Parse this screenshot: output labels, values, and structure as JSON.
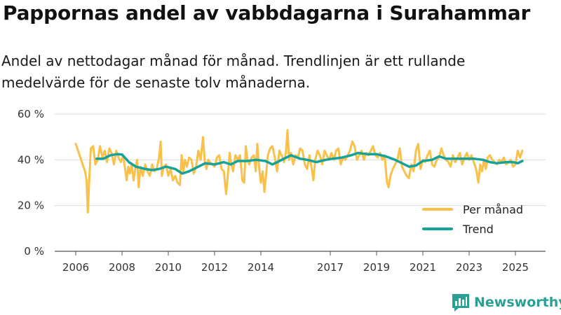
{
  "chart_data": {
    "type": "line",
    "title": "Pappornas andel av vabbdagarna i Surahammar",
    "subtitle": "Andel av nettodagar månad för månad. Trendlinjen är ett rullande medelvärde för de senaste tolv månaderna.",
    "ylim": [
      0,
      60
    ],
    "y_ticks": [
      {
        "value": 0,
        "label": "0 %"
      },
      {
        "value": 20,
        "label": "20 %"
      },
      {
        "value": 40,
        "label": "40 %"
      },
      {
        "value": 60,
        "label": "60 %"
      }
    ],
    "x_ticks": [
      {
        "value": 2006,
        "label": "2006"
      },
      {
        "value": 2008,
        "label": "2008"
      },
      {
        "value": 2010,
        "label": "2010"
      },
      {
        "value": 2012,
        "label": "2012"
      },
      {
        "value": 2014,
        "label": "2014"
      },
      {
        "value": 2017,
        "label": "2017"
      },
      {
        "value": 2019,
        "label": "2019"
      },
      {
        "value": 2021,
        "label": "2021"
      },
      {
        "value": 2023,
        "label": "2023"
      },
      {
        "value": 2025,
        "label": "2025"
      }
    ],
    "grid": true,
    "legend_position": "bottom-right",
    "series": [
      {
        "name": "Per månad",
        "color": "#f9c04a",
        "points": [
          [
            2006.0,
            47
          ],
          [
            2006.1,
            44
          ],
          [
            2006.2,
            41
          ],
          [
            2006.3,
            38
          ],
          [
            2006.4,
            35
          ],
          [
            2006.47,
            31
          ],
          [
            2006.52,
            17
          ],
          [
            2006.58,
            30
          ],
          [
            2006.65,
            45
          ],
          [
            2006.75,
            46
          ],
          [
            2006.85,
            38
          ],
          [
            2006.95,
            40
          ],
          [
            2007.05,
            46
          ],
          [
            2007.15,
            41
          ],
          [
            2007.25,
            44
          ],
          [
            2007.35,
            39
          ],
          [
            2007.45,
            45
          ],
          [
            2007.55,
            43
          ],
          [
            2007.65,
            38
          ],
          [
            2007.75,
            44
          ],
          [
            2007.85,
            41
          ],
          [
            2007.95,
            39
          ],
          [
            2008.05,
            42
          ],
          [
            2008.12,
            37
          ],
          [
            2008.2,
            31
          ],
          [
            2008.27,
            37
          ],
          [
            2008.35,
            34
          ],
          [
            2008.42,
            38
          ],
          [
            2008.5,
            31
          ],
          [
            2008.57,
            36
          ],
          [
            2008.65,
            40
          ],
          [
            2008.72,
            28
          ],
          [
            2008.8,
            37
          ],
          [
            2008.9,
            33
          ],
          [
            2009.0,
            38
          ],
          [
            2009.1,
            35
          ],
          [
            2009.2,
            33
          ],
          [
            2009.3,
            38
          ],
          [
            2009.4,
            35
          ],
          [
            2009.5,
            36
          ],
          [
            2009.6,
            41
          ],
          [
            2009.67,
            48
          ],
          [
            2009.72,
            33
          ],
          [
            2009.8,
            37
          ],
          [
            2009.9,
            38
          ],
          [
            2010.0,
            33
          ],
          [
            2010.1,
            36
          ],
          [
            2010.2,
            31
          ],
          [
            2010.3,
            33
          ],
          [
            2010.4,
            30
          ],
          [
            2010.5,
            29
          ],
          [
            2010.58,
            42
          ],
          [
            2010.65,
            35
          ],
          [
            2010.72,
            40
          ],
          [
            2010.8,
            37
          ],
          [
            2010.9,
            41
          ],
          [
            2011.0,
            40
          ],
          [
            2011.1,
            34
          ],
          [
            2011.2,
            37
          ],
          [
            2011.3,
            44
          ],
          [
            2011.4,
            40
          ],
          [
            2011.5,
            50
          ],
          [
            2011.58,
            39
          ],
          [
            2011.65,
            36
          ],
          [
            2011.72,
            40
          ],
          [
            2011.8,
            39
          ],
          [
            2011.9,
            38
          ],
          [
            2012.0,
            37
          ],
          [
            2012.1,
            41
          ],
          [
            2012.2,
            42
          ],
          [
            2012.3,
            36
          ],
          [
            2012.4,
            35
          ],
          [
            2012.5,
            25
          ],
          [
            2012.58,
            34
          ],
          [
            2012.65,
            43
          ],
          [
            2012.72,
            38
          ],
          [
            2012.8,
            35
          ],
          [
            2012.9,
            42
          ],
          [
            2013.0,
            40
          ],
          [
            2013.1,
            42
          ],
          [
            2013.2,
            31
          ],
          [
            2013.28,
            30
          ],
          [
            2013.35,
            46
          ],
          [
            2013.42,
            40
          ],
          [
            2013.5,
            38
          ],
          [
            2013.6,
            41
          ],
          [
            2013.7,
            42
          ],
          [
            2013.78,
            35
          ],
          [
            2013.85,
            47
          ],
          [
            2013.92,
            37
          ],
          [
            2014.0,
            30
          ],
          [
            2014.08,
            35
          ],
          [
            2014.15,
            26
          ],
          [
            2014.22,
            33
          ],
          [
            2014.3,
            42
          ],
          [
            2014.4,
            45
          ],
          [
            2014.5,
            46
          ],
          [
            2014.6,
            41
          ],
          [
            2014.7,
            35
          ],
          [
            2014.8,
            44
          ],
          [
            2014.9,
            42
          ],
          [
            2015.0,
            39
          ],
          [
            2015.08,
            43
          ],
          [
            2015.15,
            53
          ],
          [
            2015.22,
            40
          ],
          [
            2015.3,
            43
          ],
          [
            2015.4,
            38
          ],
          [
            2015.5,
            42
          ],
          [
            2015.6,
            41
          ],
          [
            2015.7,
            45
          ],
          [
            2015.8,
            44
          ],
          [
            2015.9,
            38
          ],
          [
            2016.0,
            36
          ],
          [
            2016.1,
            42
          ],
          [
            2016.2,
            36
          ],
          [
            2016.27,
            31
          ],
          [
            2016.35,
            40
          ],
          [
            2016.45,
            44
          ],
          [
            2016.55,
            42
          ],
          [
            2016.65,
            38
          ],
          [
            2016.75,
            44
          ],
          [
            2016.85,
            42
          ],
          [
            2016.95,
            40
          ],
          [
            2017.05,
            43
          ],
          [
            2017.15,
            40
          ],
          [
            2017.25,
            44
          ],
          [
            2017.35,
            45
          ],
          [
            2017.45,
            38
          ],
          [
            2017.55,
            41
          ],
          [
            2017.65,
            40
          ],
          [
            2017.75,
            42
          ],
          [
            2017.85,
            44
          ],
          [
            2017.95,
            48
          ],
          [
            2018.05,
            46
          ],
          [
            2018.15,
            40
          ],
          [
            2018.25,
            42
          ],
          [
            2018.35,
            44
          ],
          [
            2018.45,
            40
          ],
          [
            2018.55,
            43
          ],
          [
            2018.65,
            42
          ],
          [
            2018.75,
            44
          ],
          [
            2018.85,
            46
          ],
          [
            2018.95,
            42
          ],
          [
            2019.05,
            41
          ],
          [
            2019.15,
            43
          ],
          [
            2019.25,
            40
          ],
          [
            2019.35,
            42
          ],
          [
            2019.45,
            30
          ],
          [
            2019.52,
            28
          ],
          [
            2019.6,
            33
          ],
          [
            2019.7,
            36
          ],
          [
            2019.8,
            38
          ],
          [
            2019.9,
            40
          ],
          [
            2020.0,
            45
          ],
          [
            2020.1,
            37
          ],
          [
            2020.2,
            35
          ],
          [
            2020.3,
            33
          ],
          [
            2020.4,
            32
          ],
          [
            2020.5,
            38
          ],
          [
            2020.6,
            35
          ],
          [
            2020.7,
            44
          ],
          [
            2020.8,
            47
          ],
          [
            2020.9,
            36
          ],
          [
            2021.0,
            40
          ],
          [
            2021.1,
            39
          ],
          [
            2021.2,
            42
          ],
          [
            2021.3,
            44
          ],
          [
            2021.4,
            38
          ],
          [
            2021.5,
            37
          ],
          [
            2021.6,
            40
          ],
          [
            2021.7,
            41
          ],
          [
            2021.8,
            45
          ],
          [
            2021.9,
            42
          ],
          [
            2022.0,
            40
          ],
          [
            2022.1,
            39
          ],
          [
            2022.2,
            37
          ],
          [
            2022.3,
            42
          ],
          [
            2022.4,
            39
          ],
          [
            2022.5,
            41
          ],
          [
            2022.6,
            43
          ],
          [
            2022.7,
            38
          ],
          [
            2022.8,
            41
          ],
          [
            2022.9,
            43
          ],
          [
            2023.0,
            40
          ],
          [
            2023.1,
            42
          ],
          [
            2023.2,
            39
          ],
          [
            2023.3,
            36
          ],
          [
            2023.4,
            30
          ],
          [
            2023.48,
            38
          ],
          [
            2023.56,
            35
          ],
          [
            2023.64,
            40
          ],
          [
            2023.72,
            36
          ],
          [
            2023.8,
            41
          ],
          [
            2023.9,
            42
          ],
          [
            2024.0,
            40
          ],
          [
            2024.1,
            39
          ],
          [
            2024.2,
            38
          ],
          [
            2024.3,
            40
          ],
          [
            2024.4,
            39
          ],
          [
            2024.5,
            41
          ],
          [
            2024.6,
            38
          ],
          [
            2024.7,
            39
          ],
          [
            2024.8,
            40
          ],
          [
            2024.9,
            37
          ],
          [
            2025.0,
            38
          ],
          [
            2025.1,
            44
          ],
          [
            2025.2,
            41
          ],
          [
            2025.3,
            44
          ]
        ]
      },
      {
        "name": "Trend",
        "color": "#15a399",
        "points": [
          [
            2006.9,
            40.5
          ],
          [
            2007.2,
            40.5
          ],
          [
            2007.5,
            42.0
          ],
          [
            2007.8,
            42.5
          ],
          [
            2008.0,
            42.3
          ],
          [
            2008.3,
            39.0
          ],
          [
            2008.6,
            37.0
          ],
          [
            2009.0,
            36.0
          ],
          [
            2009.3,
            35.5
          ],
          [
            2009.6,
            36.0
          ],
          [
            2009.9,
            37.0
          ],
          [
            2010.3,
            36.0
          ],
          [
            2010.6,
            34.0
          ],
          [
            2010.9,
            35.0
          ],
          [
            2011.3,
            37.0
          ],
          [
            2011.6,
            38.5
          ],
          [
            2012.0,
            38.0
          ],
          [
            2012.4,
            39.0
          ],
          [
            2012.7,
            38.0
          ],
          [
            2013.0,
            39.5
          ],
          [
            2013.4,
            39.5
          ],
          [
            2013.8,
            40.0
          ],
          [
            2014.2,
            39.5
          ],
          [
            2014.5,
            38.0
          ],
          [
            2014.8,
            39.5
          ],
          [
            2015.1,
            41.0
          ],
          [
            2015.3,
            42.0
          ],
          [
            2015.7,
            40.5
          ],
          [
            2016.0,
            40.0
          ],
          [
            2016.4,
            39.0
          ],
          [
            2016.8,
            40.0
          ],
          [
            2017.1,
            40.5
          ],
          [
            2017.5,
            41.0
          ],
          [
            2017.9,
            42.0
          ],
          [
            2018.2,
            43.0
          ],
          [
            2018.6,
            42.5
          ],
          [
            2019.0,
            42.5
          ],
          [
            2019.4,
            41.5
          ],
          [
            2019.8,
            40.0
          ],
          [
            2020.1,
            38.5
          ],
          [
            2020.4,
            37.0
          ],
          [
            2020.7,
            37.5
          ],
          [
            2021.0,
            39.5
          ],
          [
            2021.4,
            40.0
          ],
          [
            2021.7,
            41.5
          ],
          [
            2022.0,
            40.5
          ],
          [
            2022.4,
            40.5
          ],
          [
            2022.8,
            40.5
          ],
          [
            2023.2,
            40.5
          ],
          [
            2023.6,
            40.0
          ],
          [
            2023.9,
            39.0
          ],
          [
            2024.2,
            38.5
          ],
          [
            2024.6,
            39.0
          ],
          [
            2024.9,
            39.0
          ],
          [
            2025.1,
            38.5
          ],
          [
            2025.3,
            39.5
          ]
        ]
      }
    ]
  },
  "legend": [
    {
      "label": "Per månad",
      "color": "#f9c04a"
    },
    {
      "label": "Trend",
      "color": "#15a399"
    }
  ],
  "brand": {
    "name": "Newsworthy",
    "icon": "bar-chart-logo-icon"
  },
  "colors": {
    "grid": "#dddddd",
    "axis": "#555555"
  }
}
